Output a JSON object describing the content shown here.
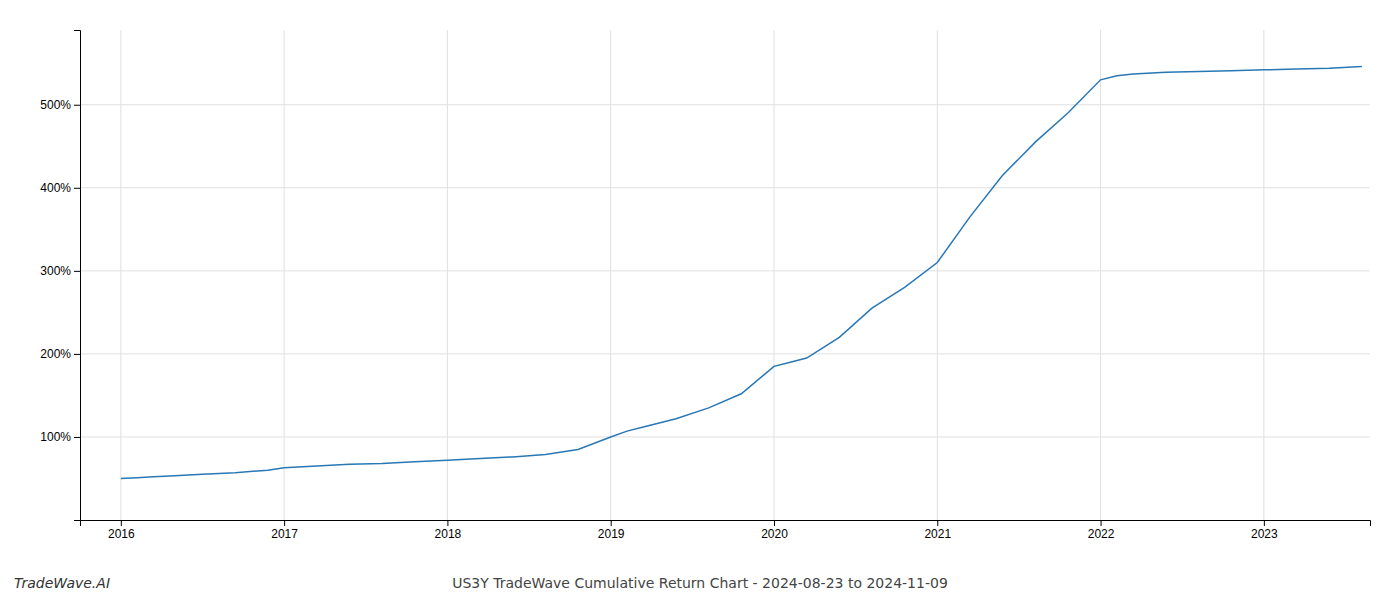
{
  "chart_data": {
    "type": "line",
    "title": "US3Y TradeWave Cumulative Return Chart - 2024-08-23 to 2024-11-09",
    "annotations": [
      "TradeWave.AI"
    ],
    "x": [
      2016.0,
      2016.1,
      2016.2,
      2016.3,
      2016.5,
      2016.7,
      2016.9,
      2017.0,
      2017.2,
      2017.4,
      2017.6,
      2017.8,
      2018.0,
      2018.2,
      2018.4,
      2018.6,
      2018.8,
      2019.0,
      2019.1,
      2019.2,
      2019.4,
      2019.6,
      2019.8,
      2020.0,
      2020.1,
      2020.2,
      2020.4,
      2020.6,
      2020.8,
      2021.0,
      2021.2,
      2021.4,
      2021.6,
      2021.8,
      2022.0,
      2022.1,
      2022.2,
      2022.4,
      2022.6,
      2022.8,
      2023.0,
      2023.2,
      2023.4,
      2023.6
    ],
    "values": [
      50,
      51,
      52,
      53,
      55,
      57,
      60,
      63,
      65,
      67,
      68,
      70,
      72,
      74,
      76,
      79,
      85,
      100,
      107,
      112,
      122,
      135,
      152,
      185,
      190,
      195,
      220,
      255,
      280,
      310,
      365,
      415,
      455,
      490,
      530,
      535,
      537,
      539,
      540,
      541,
      542,
      543,
      544,
      546
    ],
    "color": "#2878b5",
    "xlim": [
      2015.75,
      2023.65
    ],
    "ylim": [
      0,
      590
    ],
    "xticks": [
      2016,
      2017,
      2018,
      2019,
      2020,
      2021,
      2022,
      2023
    ],
    "yticks": [
      {
        "value": 100,
        "label": "100%"
      },
      {
        "value": 200,
        "label": "200%"
      },
      {
        "value": 300,
        "label": "300%"
      },
      {
        "value": 400,
        "label": "400%"
      },
      {
        "value": 500,
        "label": "500%"
      }
    ],
    "grid": true
  }
}
